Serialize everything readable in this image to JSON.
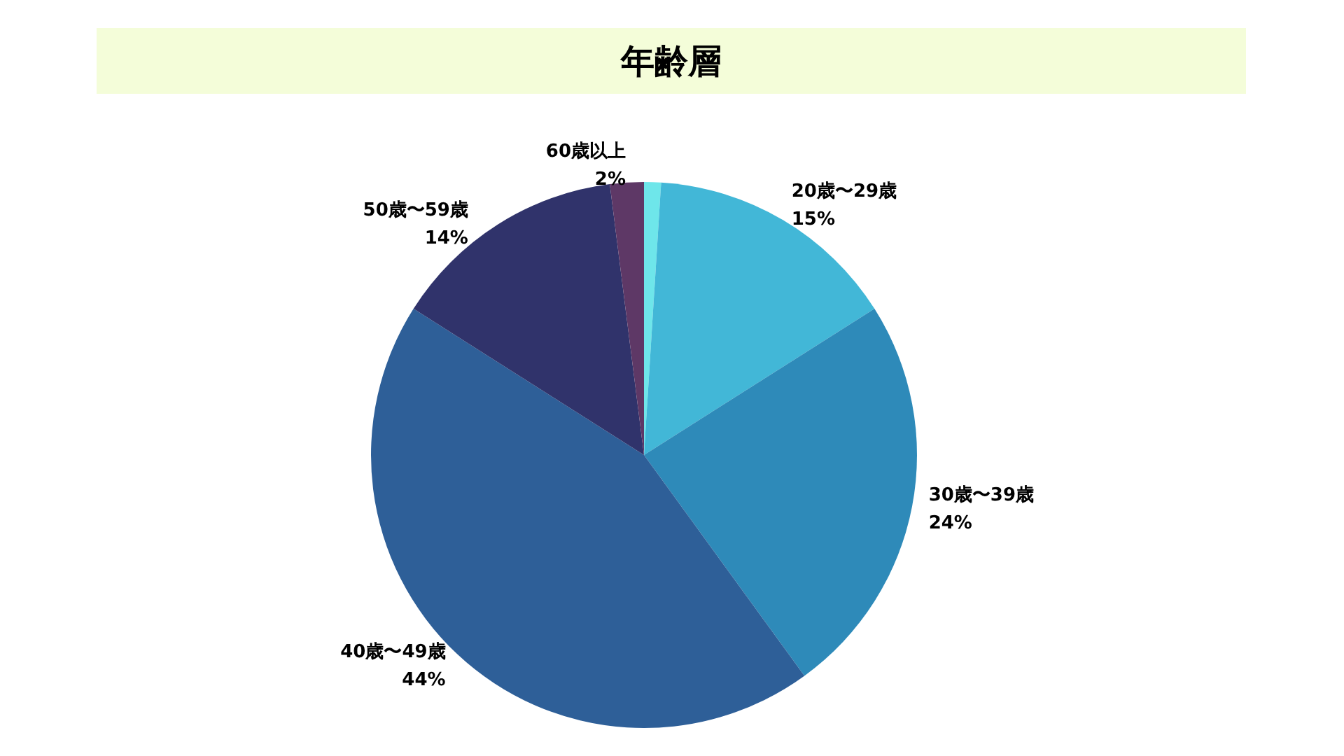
{
  "chart_data": {
    "type": "pie",
    "title": "年齢層",
    "categories": [
      null,
      "20歳〜29歳",
      "30歳〜39歳",
      "40歳〜49歳",
      "50歳〜59歳",
      "60歳以上"
    ],
    "values": [
      1,
      15,
      24,
      44,
      14,
      2
    ],
    "value_labels": [
      null,
      "15%",
      "24%",
      "44%",
      "14%",
      "2%"
    ],
    "colors": [
      "#6ee6ea",
      "#42b7d7",
      "#2e8ab9",
      "#2e5f98",
      "#30336b",
      "#5e3866"
    ]
  }
}
